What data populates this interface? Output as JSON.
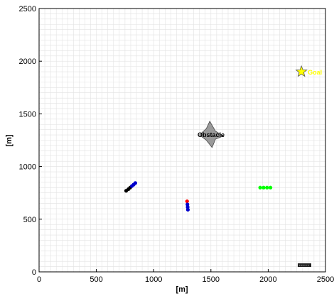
{
  "chart_data": {
    "type": "scatter",
    "title": "",
    "xlabel": "[m]",
    "ylabel": "[m]",
    "xlim": [
      0,
      2500
    ],
    "ylim": [
      0,
      2500
    ],
    "x_ticks": [
      0,
      500,
      1000,
      1500,
      2000,
      2500
    ],
    "y_ticks": [
      0,
      500,
      1000,
      1500,
      2000,
      2500
    ],
    "minor_grid_step": 50,
    "grid": true,
    "obstacle": {
      "label": "Obstacle",
      "color": "#9a9a9a",
      "polygon": [
        [
          1490,
          1430
        ],
        [
          1540,
          1335
        ],
        [
          1610,
          1290
        ],
        [
          1540,
          1260
        ],
        [
          1510,
          1180
        ],
        [
          1460,
          1250
        ],
        [
          1400,
          1300
        ],
        [
          1460,
          1360
        ]
      ]
    },
    "goal": {
      "label": "Goal",
      "x": 2290,
      "y": 1900,
      "color": "#ffff00"
    },
    "agents": [
      {
        "points": [
          {
            "x": 760,
            "y": 770,
            "color": "#000000"
          },
          {
            "x": 780,
            "y": 785,
            "color": "#000000"
          },
          {
            "x": 795,
            "y": 800,
            "color": "#000000"
          },
          {
            "x": 810,
            "y": 815,
            "color": "#0000cc"
          },
          {
            "x": 825,
            "y": 828,
            "color": "#0000cc"
          },
          {
            "x": 840,
            "y": 843,
            "color": "#0000cc"
          }
        ]
      },
      {
        "points": [
          {
            "x": 1292,
            "y": 670,
            "color": "#ff0000"
          },
          {
            "x": 1295,
            "y": 640,
            "color": "#0000cc"
          },
          {
            "x": 1297,
            "y": 615,
            "color": "#0000cc"
          },
          {
            "x": 1299,
            "y": 590,
            "color": "#0000cc"
          }
        ]
      },
      {
        "points": [
          {
            "x": 1930,
            "y": 800,
            "color": "#00ff00"
          },
          {
            "x": 1960,
            "y": 800,
            "color": "#00ff00"
          },
          {
            "x": 1990,
            "y": 800,
            "color": "#00ff00"
          },
          {
            "x": 2020,
            "y": 800,
            "color": "#00ff00"
          }
        ]
      }
    ],
    "scale_marker_color": "#222222"
  }
}
